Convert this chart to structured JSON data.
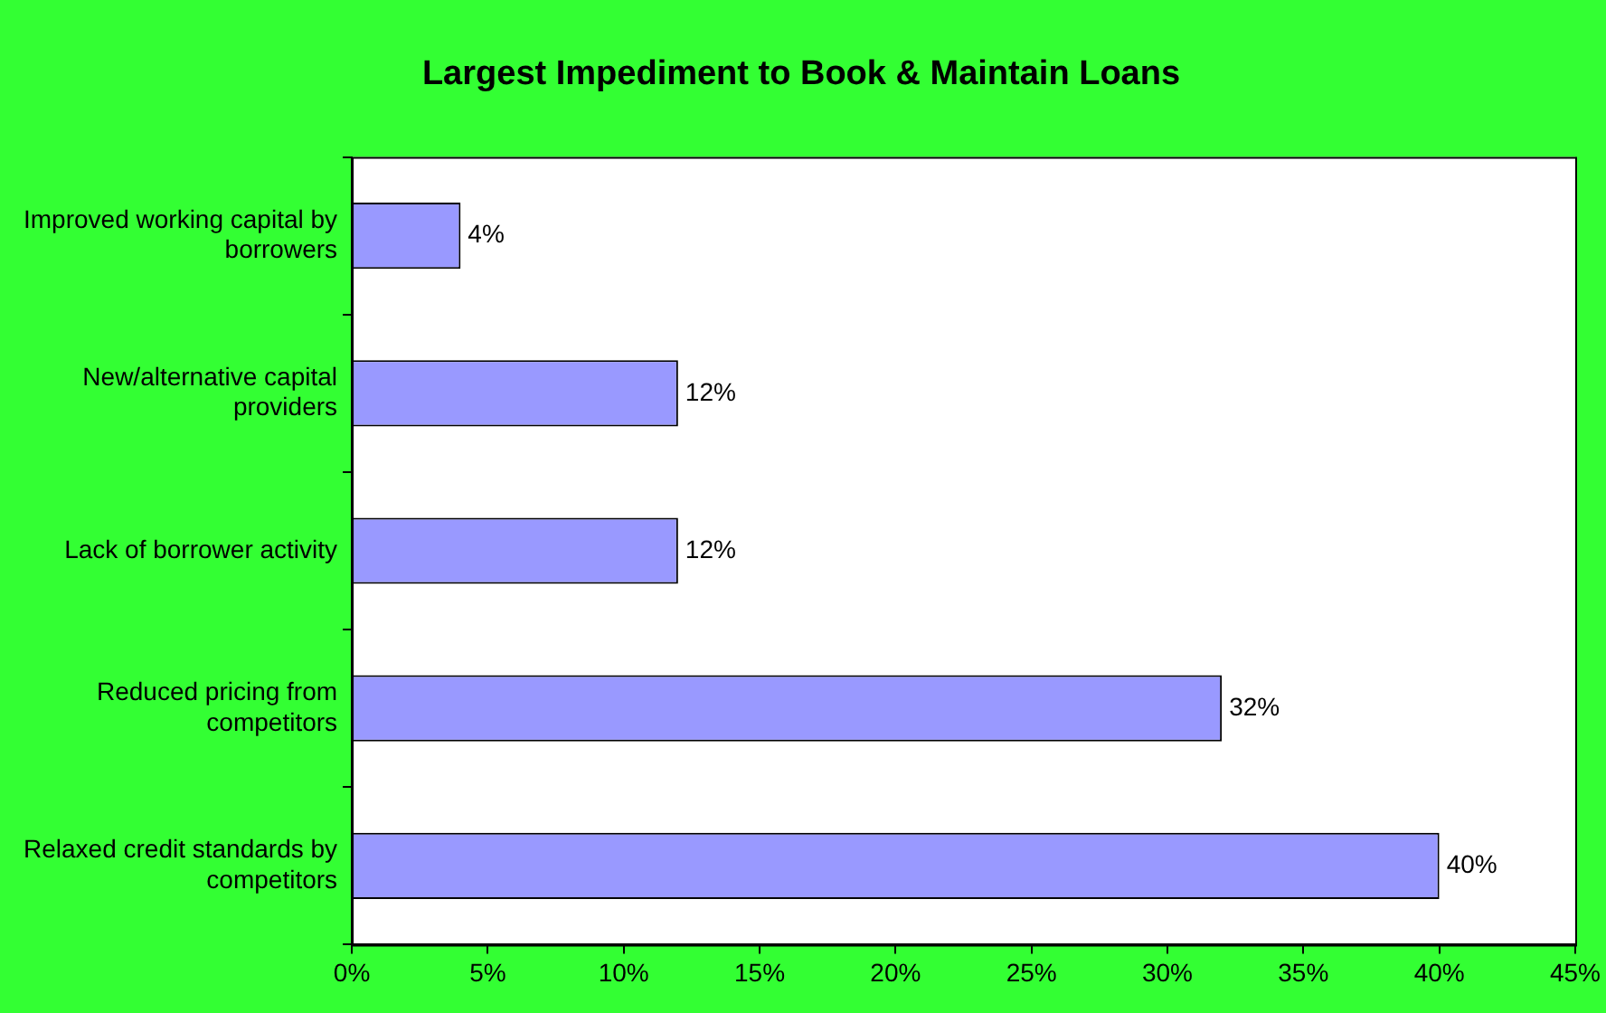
{
  "chart_data": {
    "type": "bar",
    "orientation": "horizontal",
    "title": "Largest Impediment to Book & Maintain Loans",
    "categories": [
      "Improved working capital by borrowers",
      "New/alternative capital providers",
      "Lack of borrower activity",
      "Reduced pricing from competitors",
      "Relaxed credit standards by competitors"
    ],
    "values": [
      4,
      12,
      12,
      32,
      40
    ],
    "color": "#9999ff",
    "value_labels": [
      "4%",
      "12%",
      "12%",
      "32%",
      "40%"
    ],
    "xlim": [
      0,
      45
    ],
    "xticks": [
      {
        "value": 0,
        "label": "0%"
      },
      {
        "value": 5,
        "label": "5%"
      },
      {
        "value": 10,
        "label": "10%"
      },
      {
        "value": 15,
        "label": "15%"
      },
      {
        "value": 20,
        "label": "20%"
      },
      {
        "value": 25,
        "label": "25%"
      },
      {
        "value": 30,
        "label": "30%"
      },
      {
        "value": 35,
        "label": "35%"
      },
      {
        "value": 40,
        "label": "40%"
      },
      {
        "value": 45,
        "label": "45%"
      }
    ],
    "grid": false,
    "legend": false
  }
}
